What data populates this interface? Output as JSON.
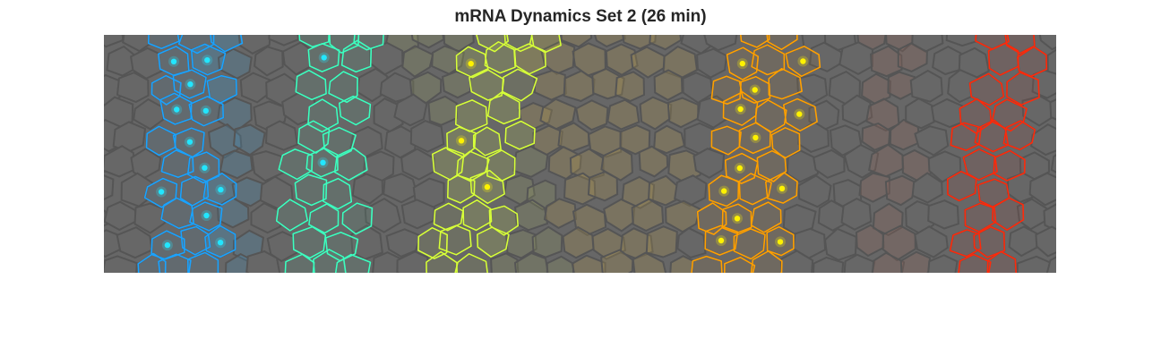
{
  "figure": {
    "title": "mRNA Dynamics Set 2 (26 min)"
  },
  "stripes": [
    {
      "name": "stripe-1",
      "color": "#1aa3ff",
      "dots": 12
    },
    {
      "name": "stripe-2",
      "color": "#3dffc0",
      "dots": 2
    },
    {
      "name": "stripe-3",
      "color": "#d7ff3a",
      "dots": 3
    },
    {
      "name": "stripe-4",
      "color": "#ffa000",
      "dots": 12
    },
    {
      "name": "stripe-5",
      "color": "#ff2a0a",
      "dots": 0
    }
  ],
  "colors": {
    "background": "#676767",
    "cell_edge": "#555555",
    "dot_cyan": "#22e6ff",
    "dot_yellow": "#fff200"
  }
}
